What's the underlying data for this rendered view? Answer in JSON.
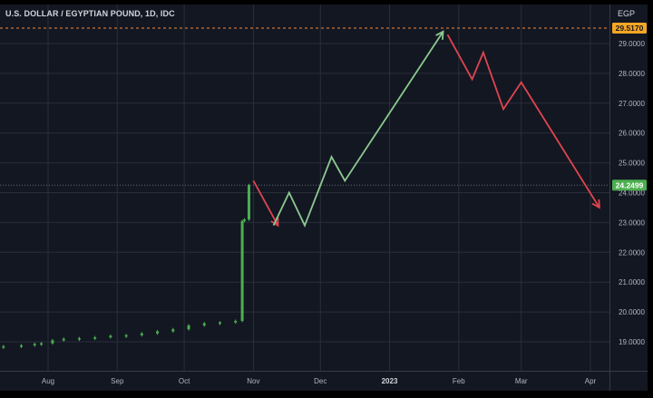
{
  "header": {
    "title": "U.S. DOLLAR / EGYPTIAN POUND, 1D, IDC",
    "unit": "EGP"
  },
  "colors": {
    "background": "#131722",
    "grid": "#2a2e39",
    "up_candle": "#4caf50",
    "down_candle": "#ef5350",
    "up_arrow": "#8bc98e",
    "down_arrow": "#e04550",
    "dashed_line": "#f28a3b",
    "high_label_bg": "#f5a623",
    "last_label_bg": "#4caf50"
  },
  "chart_data": {
    "type": "line",
    "x_axis": {
      "ticks": [
        {
          "date": "2022-08-01",
          "label": "Aug",
          "bold": false
        },
        {
          "date": "2022-09-01",
          "label": "Sep",
          "bold": false
        },
        {
          "date": "2022-10-01",
          "label": "Oct",
          "bold": false
        },
        {
          "date": "2022-11-01",
          "label": "Nov",
          "bold": false
        },
        {
          "date": "2022-12-01",
          "label": "Dec",
          "bold": false
        },
        {
          "date": "2023-01-01",
          "label": "2023",
          "bold": true
        },
        {
          "date": "2023-02-01",
          "label": "Feb",
          "bold": false
        },
        {
          "date": "2023-03-01",
          "label": "Mar",
          "bold": false
        },
        {
          "date": "2023-04-01",
          "label": "Apr",
          "bold": false
        }
      ]
    },
    "y_axis": {
      "ticks": [
        "19.0000",
        "20.0000",
        "21.0000",
        "22.0000",
        "23.0000",
        "24.0000",
        "25.0000",
        "26.0000",
        "27.0000",
        "28.0000",
        "29.0000"
      ],
      "range": [
        18.1,
        30.3
      ]
    },
    "price_series": [
      {
        "date": "2022-07-12",
        "value": 18.85
      },
      {
        "date": "2022-07-20",
        "value": 18.88
      },
      {
        "date": "2022-07-26",
        "value": 18.93
      },
      {
        "date": "2022-07-29",
        "value": 18.95
      },
      {
        "date": "2022-08-03",
        "value": 19.05
      },
      {
        "date": "2022-08-08",
        "value": 19.1
      },
      {
        "date": "2022-08-15",
        "value": 19.12
      },
      {
        "date": "2022-08-22",
        "value": 19.15
      },
      {
        "date": "2022-08-29",
        "value": 19.2
      },
      {
        "date": "2022-09-05",
        "value": 19.22
      },
      {
        "date": "2022-09-12",
        "value": 19.28
      },
      {
        "date": "2022-09-19",
        "value": 19.35
      },
      {
        "date": "2022-09-26",
        "value": 19.42
      },
      {
        "date": "2022-10-03",
        "value": 19.55
      },
      {
        "date": "2022-10-10",
        "value": 19.62
      },
      {
        "date": "2022-10-17",
        "value": 19.65
      },
      {
        "date": "2022-10-24",
        "value": 19.7
      },
      {
        "date": "2022-10-27",
        "value": 23.05
      },
      {
        "date": "2022-10-28",
        "value": 23.1
      },
      {
        "date": "2022-10-30",
        "value": 24.25
      }
    ],
    "projection_up_1": {
      "color_key": "up_arrow",
      "points": [
        {
          "date": "2022-11-10",
          "value": 22.9
        },
        {
          "date": "2022-11-17",
          "value": 24.0
        },
        {
          "date": "2022-11-24",
          "value": 22.9
        },
        {
          "date": "2022-12-06",
          "value": 25.2
        },
        {
          "date": "2022-12-12",
          "value": 24.4
        },
        {
          "date": "2023-01-25",
          "value": 29.4
        }
      ]
    },
    "projection_down_1": {
      "color_key": "down_arrow",
      "points": [
        {
          "date": "2022-11-01",
          "value": 24.4
        },
        {
          "date": "2022-11-12",
          "value": 22.9
        }
      ]
    },
    "projection_down_2": {
      "color_key": "down_arrow",
      "points": [
        {
          "date": "2023-01-27",
          "value": 29.3
        },
        {
          "date": "2023-02-07",
          "value": 27.8
        },
        {
          "date": "2023-02-12",
          "value": 28.7
        },
        {
          "date": "2023-02-21",
          "value": 26.8
        },
        {
          "date": "2023-03-01",
          "value": 27.7
        },
        {
          "date": "2023-04-05",
          "value": 23.5
        }
      ]
    },
    "price_levels": [
      {
        "value": 29.517,
        "label": "29.5170",
        "style": "dashed",
        "bg_key": "high_label_bg"
      },
      {
        "value": 24.2499,
        "label": "24.2499",
        "style": "dotted",
        "bg_key": "last_label_bg"
      }
    ]
  }
}
